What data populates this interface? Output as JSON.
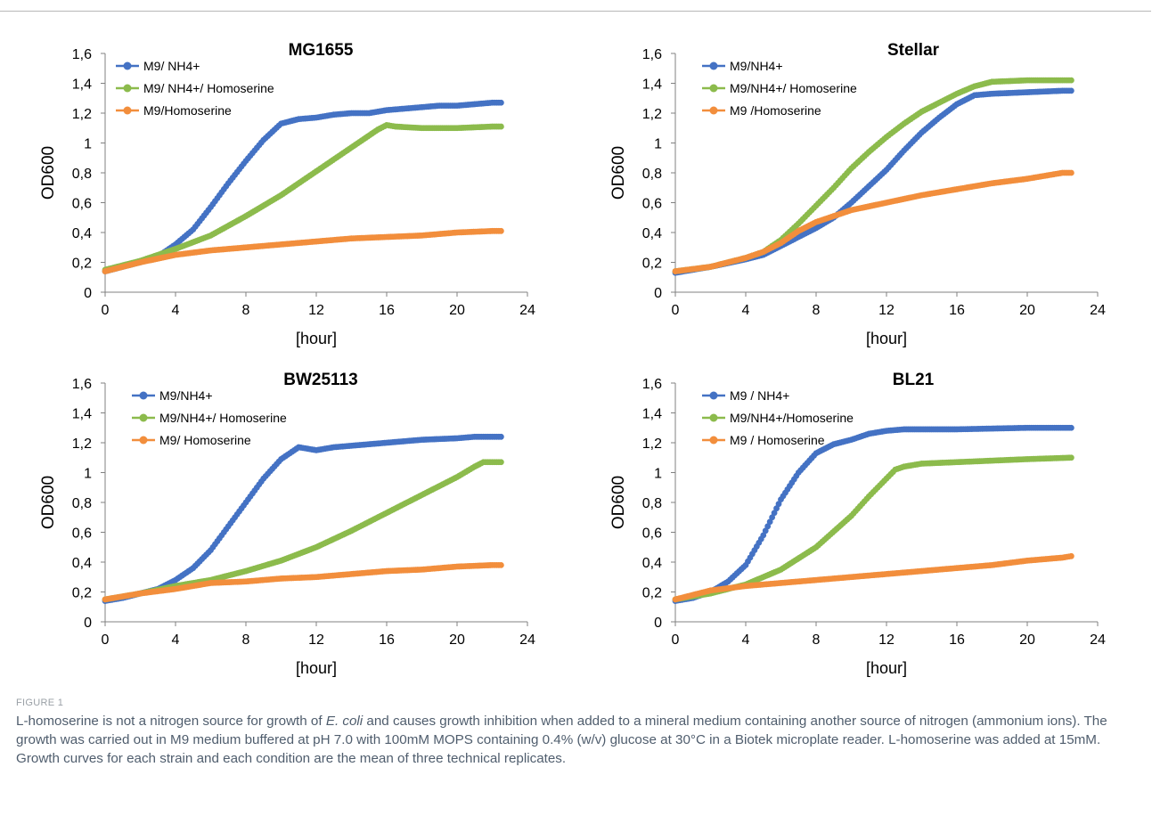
{
  "figure": {
    "label": "FIGURE 1",
    "caption": {
      "before": "L-homoserine is not a nitrogen source for growth of ",
      "species": "E. coli",
      "after": " and causes growth inhibition when added to a mineral medium containing another source of nitrogen (ammonium ions). The growth was carried out in M9 medium buffered at pH 7.0 with 100mM MOPS containing 0.4% (w/v) glucose at 30°C in a Biotek microplate reader. L-homoserine was added at 15mM. Growth curves for each strain and each condition are the mean of three technical replicates."
    }
  },
  "colors": {
    "blue": "#4472c4",
    "green": "#8cbb4c",
    "orange": "#f28e3c"
  },
  "chart_data": [
    {
      "type": "scatter",
      "title": "MG1655",
      "xlabel": "[hour]",
      "ylabel": "OD600",
      "xlim": [
        0,
        24
      ],
      "ylim": [
        0,
        1.6
      ],
      "xticks": [
        "0",
        "4",
        "8",
        "12",
        "16",
        "20",
        "24"
      ],
      "yticks": [
        "0",
        "0,2",
        "0,4",
        "0,6",
        "0,8",
        "1",
        "1,2",
        "1,4",
        "1,6"
      ],
      "legend_position": "top-left",
      "series": [
        {
          "name": "M9/ NH4+",
          "color": "#4472c4",
          "points": [
            [
              0,
              0.14
            ],
            [
              1,
              0.17
            ],
            [
              2,
              0.2
            ],
            [
              3,
              0.24
            ],
            [
              4,
              0.32
            ],
            [
              5,
              0.42
            ],
            [
              6,
              0.57
            ],
            [
              7,
              0.73
            ],
            [
              8,
              0.88
            ],
            [
              9,
              1.02
            ],
            [
              10,
              1.13
            ],
            [
              11,
              1.16
            ],
            [
              12,
              1.17
            ],
            [
              13,
              1.19
            ],
            [
              14,
              1.2
            ],
            [
              15,
              1.2
            ],
            [
              16,
              1.22
            ],
            [
              17,
              1.23
            ],
            [
              18,
              1.24
            ],
            [
              19,
              1.25
            ],
            [
              20,
              1.25
            ],
            [
              21,
              1.26
            ],
            [
              22,
              1.27
            ],
            [
              22.5,
              1.27
            ]
          ]
        },
        {
          "name": "M9/ NH4+/ Homoserine",
          "color": "#8cbb4c",
          "points": [
            [
              0,
              0.15
            ],
            [
              2,
              0.21
            ],
            [
              4,
              0.29
            ],
            [
              6,
              0.38
            ],
            [
              8,
              0.51
            ],
            [
              10,
              0.65
            ],
            [
              12,
              0.81
            ],
            [
              14,
              0.97
            ],
            [
              15.5,
              1.09
            ],
            [
              16,
              1.12
            ],
            [
              16.5,
              1.11
            ],
            [
              18,
              1.1
            ],
            [
              20,
              1.1
            ],
            [
              22,
              1.11
            ],
            [
              22.5,
              1.11
            ]
          ]
        },
        {
          "name": "M9/Homoserine",
          "color": "#f28e3c",
          "points": [
            [
              0,
              0.14
            ],
            [
              2,
              0.2
            ],
            [
              4,
              0.25
            ],
            [
              6,
              0.28
            ],
            [
              8,
              0.3
            ],
            [
              10,
              0.32
            ],
            [
              12,
              0.34
            ],
            [
              14,
              0.36
            ],
            [
              16,
              0.37
            ],
            [
              18,
              0.38
            ],
            [
              20,
              0.4
            ],
            [
              22,
              0.41
            ],
            [
              22.5,
              0.41
            ]
          ]
        }
      ]
    },
    {
      "type": "scatter",
      "title": "Stellar",
      "xlabel": "[hour]",
      "ylabel": "OD600",
      "xlim": [
        0,
        24
      ],
      "ylim": [
        0,
        1.6
      ],
      "xticks": [
        "0",
        "4",
        "8",
        "12",
        "16",
        "20",
        "24"
      ],
      "yticks": [
        "0",
        "0,2",
        "0,4",
        "0,6",
        "0,8",
        "1",
        "1,2",
        "1,4",
        "1,6"
      ],
      "legend_position": "top-left",
      "series": [
        {
          "name": "M9/NH4+",
          "color": "#4472c4",
          "points": [
            [
              0,
              0.13
            ],
            [
              2,
              0.17
            ],
            [
              4,
              0.22
            ],
            [
              5,
              0.25
            ],
            [
              6,
              0.31
            ],
            [
              7,
              0.37
            ],
            [
              8,
              0.43
            ],
            [
              9,
              0.5
            ],
            [
              10,
              0.6
            ],
            [
              11,
              0.71
            ],
            [
              12,
              0.82
            ],
            [
              13,
              0.95
            ],
            [
              14,
              1.07
            ],
            [
              15,
              1.17
            ],
            [
              16,
              1.26
            ],
            [
              17,
              1.32
            ],
            [
              18,
              1.33
            ],
            [
              20,
              1.34
            ],
            [
              22,
              1.35
            ],
            [
              22.5,
              1.35
            ]
          ]
        },
        {
          "name": "M9/NH4+/ Homoserine",
          "color": "#8cbb4c",
          "points": [
            [
              0,
              0.14
            ],
            [
              2,
              0.17
            ],
            [
              4,
              0.23
            ],
            [
              5,
              0.27
            ],
            [
              6,
              0.35
            ],
            [
              7,
              0.46
            ],
            [
              8,
              0.58
            ],
            [
              9,
              0.7
            ],
            [
              10,
              0.83
            ],
            [
              11,
              0.94
            ],
            [
              12,
              1.04
            ],
            [
              13,
              1.13
            ],
            [
              14,
              1.21
            ],
            [
              15,
              1.27
            ],
            [
              16,
              1.33
            ],
            [
              17,
              1.38
            ],
            [
              18,
              1.41
            ],
            [
              20,
              1.42
            ],
            [
              22,
              1.42
            ],
            [
              22.5,
              1.42
            ]
          ]
        },
        {
          "name": "M9 /Homoserine",
          "color": "#f28e3c",
          "points": [
            [
              0,
              0.14
            ],
            [
              2,
              0.17
            ],
            [
              4,
              0.23
            ],
            [
              5,
              0.27
            ],
            [
              6,
              0.33
            ],
            [
              7,
              0.41
            ],
            [
              8,
              0.47
            ],
            [
              9,
              0.51
            ],
            [
              10,
              0.55
            ],
            [
              12,
              0.6
            ],
            [
              14,
              0.65
            ],
            [
              16,
              0.69
            ],
            [
              18,
              0.73
            ],
            [
              20,
              0.76
            ],
            [
              21,
              0.78
            ],
            [
              22,
              0.8
            ],
            [
              22.5,
              0.8
            ]
          ]
        }
      ]
    },
    {
      "type": "scatter",
      "title": "BW25113",
      "xlabel": "[hour]",
      "ylabel": "OD600",
      "xlim": [
        0,
        24
      ],
      "ylim": [
        0,
        1.6
      ],
      "xticks": [
        "0",
        "4",
        "8",
        "12",
        "16",
        "20",
        "24"
      ],
      "yticks": [
        "0",
        "0,2",
        "0,4",
        "0,6",
        "0,8",
        "1",
        "1,2",
        "1,4",
        "1,6"
      ],
      "legend_position": "top-left",
      "series": [
        {
          "name": "M9/NH4+",
          "color": "#4472c4",
          "points": [
            [
              0,
              0.14
            ],
            [
              1,
              0.16
            ],
            [
              2,
              0.19
            ],
            [
              3,
              0.22
            ],
            [
              4,
              0.28
            ],
            [
              5,
              0.36
            ],
            [
              6,
              0.48
            ],
            [
              7,
              0.64
            ],
            [
              8,
              0.8
            ],
            [
              9,
              0.96
            ],
            [
              10,
              1.09
            ],
            [
              11,
              1.17
            ],
            [
              11.5,
              1.16
            ],
            [
              12,
              1.15
            ],
            [
              13,
              1.17
            ],
            [
              14,
              1.18
            ],
            [
              16,
              1.2
            ],
            [
              18,
              1.22
            ],
            [
              20,
              1.23
            ],
            [
              21,
              1.24
            ],
            [
              22,
              1.24
            ],
            [
              22.5,
              1.24
            ]
          ]
        },
        {
          "name": "M9/NH4+/ Homoserine",
          "color": "#8cbb4c",
          "points": [
            [
              0,
              0.15
            ],
            [
              2,
              0.19
            ],
            [
              4,
              0.24
            ],
            [
              6,
              0.28
            ],
            [
              8,
              0.34
            ],
            [
              10,
              0.41
            ],
            [
              12,
              0.5
            ],
            [
              14,
              0.61
            ],
            [
              16,
              0.73
            ],
            [
              18,
              0.85
            ],
            [
              20,
              0.97
            ],
            [
              21,
              1.04
            ],
            [
              21.5,
              1.07
            ],
            [
              22,
              1.07
            ],
            [
              22.5,
              1.07
            ]
          ]
        },
        {
          "name": "M9/ Homoserine",
          "color": "#f28e3c",
          "points": [
            [
              0,
              0.15
            ],
            [
              2,
              0.19
            ],
            [
              4,
              0.22
            ],
            [
              6,
              0.26
            ],
            [
              8,
              0.27
            ],
            [
              10,
              0.29
            ],
            [
              12,
              0.3
            ],
            [
              14,
              0.32
            ],
            [
              16,
              0.34
            ],
            [
              18,
              0.35
            ],
            [
              20,
              0.37
            ],
            [
              22,
              0.38
            ],
            [
              22.5,
              0.38
            ]
          ]
        }
      ]
    },
    {
      "type": "scatter",
      "title": "BL21",
      "xlabel": "[hour]",
      "ylabel": "OD600",
      "xlim": [
        0,
        24
      ],
      "ylim": [
        0,
        1.6
      ],
      "xticks": [
        "0",
        "4",
        "8",
        "12",
        "16",
        "20",
        "24"
      ],
      "yticks": [
        "0",
        "0,2",
        "0,4",
        "0,6",
        "0,8",
        "1",
        "1,2",
        "1,4",
        "1,6"
      ],
      "legend_position": "top-left",
      "series": [
        {
          "name": "M9 / NH4+",
          "color": "#4472c4",
          "points": [
            [
              0,
              0.14
            ],
            [
              1,
              0.16
            ],
            [
              2,
              0.2
            ],
            [
              3,
              0.27
            ],
            [
              4,
              0.38
            ],
            [
              5,
              0.58
            ],
            [
              6,
              0.82
            ],
            [
              7,
              1.0
            ],
            [
              8,
              1.13
            ],
            [
              9,
              1.19
            ],
            [
              10,
              1.22
            ],
            [
              11,
              1.26
            ],
            [
              12,
              1.28
            ],
            [
              13,
              1.29
            ],
            [
              16,
              1.29
            ],
            [
              20,
              1.3
            ],
            [
              22.5,
              1.3
            ]
          ]
        },
        {
          "name": "M9/NH4+/Homoserine",
          "color": "#8cbb4c",
          "points": [
            [
              0,
              0.15
            ],
            [
              2,
              0.19
            ],
            [
              4,
              0.25
            ],
            [
              6,
              0.35
            ],
            [
              8,
              0.5
            ],
            [
              10,
              0.71
            ],
            [
              11,
              0.84
            ],
            [
              12,
              0.96
            ],
            [
              12.5,
              1.02
            ],
            [
              13,
              1.04
            ],
            [
              14,
              1.06
            ],
            [
              16,
              1.07
            ],
            [
              18,
              1.08
            ],
            [
              20,
              1.09
            ],
            [
              22.5,
              1.1
            ]
          ]
        },
        {
          "name": "M9 / Homoserine",
          "color": "#f28e3c",
          "points": [
            [
              0,
              0.15
            ],
            [
              2,
              0.21
            ],
            [
              4,
              0.24
            ],
            [
              6,
              0.26
            ],
            [
              8,
              0.28
            ],
            [
              10,
              0.3
            ],
            [
              12,
              0.32
            ],
            [
              14,
              0.34
            ],
            [
              16,
              0.36
            ],
            [
              18,
              0.38
            ],
            [
              20,
              0.41
            ],
            [
              22,
              0.43
            ],
            [
              22.5,
              0.44
            ]
          ]
        }
      ]
    }
  ]
}
